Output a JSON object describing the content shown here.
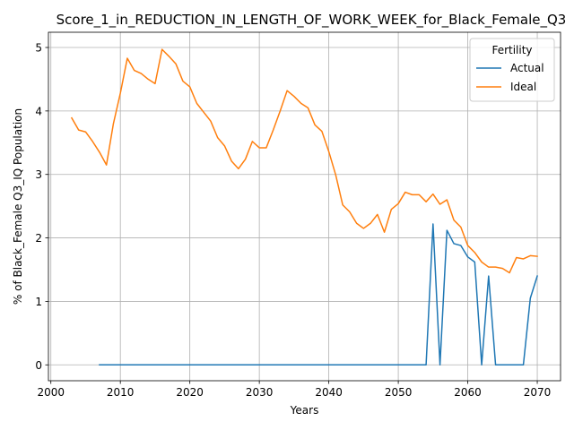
{
  "chart_data": {
    "type": "line",
    "title": "Score_1_in_REDUCTION_IN_LENGTH_OF_WORK_WEEK_for_Black_Female_Q3",
    "xlabel": "Years",
    "ylabel": "% of Black_Female Q3_IQ Population",
    "xlim": [
      1999.65,
      2073.35
    ],
    "ylim": [
      -0.25,
      5.24
    ],
    "xticks": [
      2000,
      2010,
      2020,
      2030,
      2040,
      2050,
      2060,
      2070
    ],
    "yticks": [
      0,
      1,
      2,
      3,
      4,
      5
    ],
    "grid": true,
    "legend": {
      "title": "Fertility",
      "placement": "top-right"
    },
    "series": [
      {
        "name": "Actual",
        "color": "#1f77b4",
        "x": [
          2007,
          2008,
          2009,
          2010,
          2011,
          2012,
          2013,
          2014,
          2015,
          2016,
          2017,
          2018,
          2019,
          2020,
          2021,
          2022,
          2023,
          2024,
          2025,
          2026,
          2027,
          2028,
          2029,
          2030,
          2031,
          2032,
          2033,
          2034,
          2035,
          2036,
          2037,
          2038,
          2039,
          2040,
          2041,
          2042,
          2043,
          2044,
          2045,
          2046,
          2047,
          2048,
          2049,
          2050,
          2051,
          2052,
          2053,
          2054,
          2055,
          2056,
          2057,
          2058,
          2059,
          2060,
          2061,
          2062,
          2063,
          2064,
          2065,
          2066,
          2067,
          2068,
          2069,
          2070
        ],
        "y": [
          0,
          0,
          0,
          0,
          0,
          0,
          0,
          0,
          0,
          0,
          0,
          0,
          0,
          0,
          0,
          0,
          0,
          0,
          0,
          0,
          0,
          0,
          0,
          0,
          0,
          0,
          0,
          0,
          0,
          0,
          0,
          0,
          0,
          0,
          0,
          0,
          0,
          0,
          0,
          0,
          0,
          0,
          0,
          0,
          0,
          0,
          0,
          0,
          2.22,
          0,
          2.12,
          1.91,
          1.88,
          1.7,
          1.62,
          0,
          1.4,
          0,
          0,
          0,
          0,
          0,
          1.05,
          1.4
        ]
      },
      {
        "name": "Ideal",
        "color": "#ff7f0e",
        "x": [
          2003,
          2004,
          2005,
          2006,
          2007,
          2008,
          2009,
          2010,
          2011,
          2012,
          2013,
          2014,
          2015,
          2016,
          2017,
          2018,
          2019,
          2020,
          2021,
          2022,
          2023,
          2024,
          2025,
          2026,
          2027,
          2028,
          2029,
          2030,
          2031,
          2032,
          2033,
          2034,
          2035,
          2036,
          2037,
          2038,
          2039,
          2040,
          2041,
          2042,
          2043,
          2044,
          2045,
          2046,
          2047,
          2048,
          2049,
          2050,
          2051,
          2052,
          2053,
          2054,
          2055,
          2056,
          2057,
          2058,
          2059,
          2060,
          2061,
          2062,
          2063,
          2064,
          2065,
          2066,
          2067,
          2068,
          2069,
          2070
        ],
        "y": [
          3.89,
          3.7,
          3.67,
          3.52,
          3.35,
          3.15,
          3.8,
          4.28,
          4.83,
          4.64,
          4.59,
          4.5,
          4.43,
          4.97,
          4.86,
          4.74,
          4.47,
          4.38,
          4.12,
          3.98,
          3.84,
          3.58,
          3.45,
          3.21,
          3.09,
          3.24,
          3.52,
          3.42,
          3.42,
          3.7,
          4.0,
          4.32,
          4.23,
          4.12,
          4.05,
          3.78,
          3.68,
          3.36,
          2.99,
          2.52,
          2.41,
          2.23,
          2.15,
          2.23,
          2.37,
          2.09,
          2.45,
          2.54,
          2.72,
          2.68,
          2.68,
          2.57,
          2.69,
          2.53,
          2.6,
          2.28,
          2.17,
          1.88,
          1.77,
          1.62,
          1.54,
          1.54,
          1.52,
          1.45,
          1.69,
          1.67,
          1.72,
          1.71
        ]
      }
    ]
  }
}
